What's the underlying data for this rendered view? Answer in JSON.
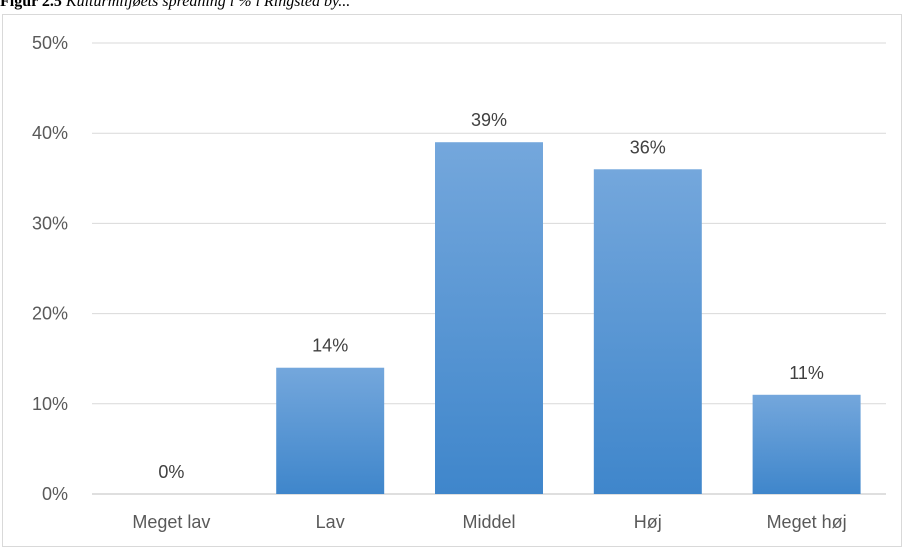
{
  "caption": {
    "prefix": "Figur 2.5",
    "text": "Kulturmiljøets spredning i % i Ringsted by..."
  },
  "chart_data": {
    "type": "bar",
    "categories": [
      "Meget lav",
      "Lav",
      "Middel",
      "Høj",
      "Meget høj"
    ],
    "values": [
      0,
      14,
      39,
      36,
      11
    ],
    "value_labels": [
      "0%",
      "14%",
      "39%",
      "36%",
      "11%"
    ],
    "ylim": [
      0,
      50
    ],
    "yticks": [
      0,
      10,
      20,
      30,
      40,
      50
    ],
    "ytick_labels": [
      "0%",
      "10%",
      "20%",
      "30%",
      "40%",
      "50%"
    ],
    "grid": true,
    "title": "",
    "xlabel": "",
    "ylabel": "",
    "colors": {
      "bar_top": "#74a7dc",
      "bar_bottom": "#3f86cb",
      "grid": "#d9d9d9",
      "axis": "#bfbfbf"
    }
  }
}
